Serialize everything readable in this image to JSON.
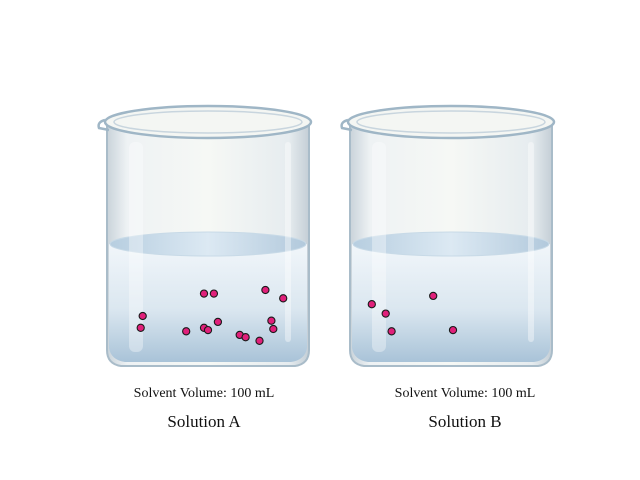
{
  "colors": {
    "particle_fill": "#e0207a",
    "particle_stroke": "#1a1a1a",
    "liquid": "#cfe0ee",
    "glass_rim": "#9fb6c6"
  },
  "beakers": [
    {
      "volume_label": "Solvent Volume: 100 mL",
      "name": "Solution A",
      "particle_count": 15,
      "particles": [
        [
          0.48,
          0.42
        ],
        [
          0.53,
          0.42
        ],
        [
          0.79,
          0.39
        ],
        [
          0.88,
          0.46
        ],
        [
          0.17,
          0.61
        ],
        [
          0.16,
          0.71
        ],
        [
          0.39,
          0.74
        ],
        [
          0.48,
          0.71
        ],
        [
          0.5,
          0.73
        ],
        [
          0.55,
          0.66
        ],
        [
          0.66,
          0.77
        ],
        [
          0.69,
          0.79
        ],
        [
          0.76,
          0.82
        ],
        [
          0.82,
          0.65
        ],
        [
          0.83,
          0.72
        ]
      ]
    },
    {
      "volume_label": "Solvent Volume: 100 mL",
      "name": "Solution B",
      "particle_count": 5,
      "particles": [
        [
          0.1,
          0.51
        ],
        [
          0.17,
          0.59
        ],
        [
          0.2,
          0.74
        ],
        [
          0.41,
          0.44
        ],
        [
          0.51,
          0.73
        ]
      ]
    }
  ]
}
